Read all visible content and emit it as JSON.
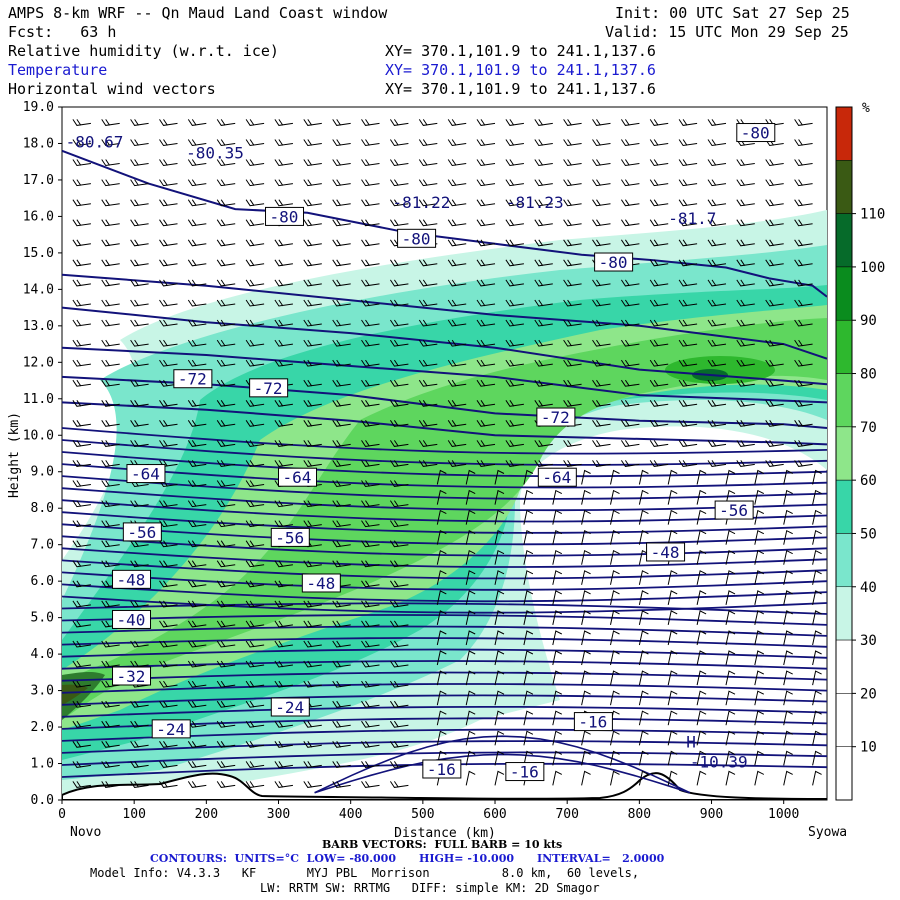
{
  "header": {
    "title": "AMPS 8-km WRF -- Qn Maud Land Coast window",
    "init": "Init: 00 UTC Sat 27 Sep 25",
    "fcst": "Fcst:   63 h",
    "valid": "Valid: 15 UTC Mon 29 Sep 25",
    "fields": [
      {
        "label": "Relative humidity (w.r.t. ice)",
        "xy": "XY= 370.1,101.9 to 241.1,137.6",
        "color": "#000000"
      },
      {
        "label": "Temperature",
        "xy": "XY= 370.1,101.9 to 241.1,137.6",
        "color": "#1a1ad0"
      },
      {
        "label": "Horizontal wind vectors",
        "xy": "XY= 370.1,101.9 to 241.1,137.6",
        "color": "#000000"
      }
    ]
  },
  "chart_data": {
    "type": "heatmap",
    "ylabel": "Height (km)",
    "xlabel": "Distance (km)",
    "xlim": [
      0,
      1060
    ],
    "ylim": [
      0,
      19
    ],
    "x_ticks": [
      "0",
      "100",
      "200",
      "300",
      "400",
      "500",
      "600",
      "700",
      "800",
      "900",
      "1000"
    ],
    "y_ticks": [
      "0.0",
      "1.0",
      "2.0",
      "3.0",
      "4.0",
      "5.0",
      "6.0",
      "7.0",
      "8.0",
      "9.0",
      "10.0",
      "11.0",
      "12.0",
      "13.0",
      "14.0",
      "15.0",
      "16.0",
      "17.0",
      "18.0",
      "19.0"
    ],
    "left_station": "Novo",
    "right_station": "Syowa",
    "colorbar": {
      "unit": "%",
      "levels": [
        "10",
        "20",
        "30",
        "40",
        "50",
        "60",
        "70",
        "80",
        "90",
        "100",
        "110"
      ],
      "colors": [
        "#ffffff",
        "#ffffff",
        "#ffffff",
        "#c8f5e6",
        "#7ae6cc",
        "#38d6a8",
        "#8ee68a",
        "#5ed65e",
        "#2eb82e",
        "#0a8c1e",
        "#066b2a",
        "#3a5a14",
        "#c8280a"
      ]
    },
    "temperature_labels": [
      {
        "text": "-80",
        "x": 935,
        "y": 18.3
      },
      {
        "text": "-80",
        "x": 282,
        "y": 16.0
      },
      {
        "text": "-80",
        "x": 465,
        "y": 15.4
      },
      {
        "text": "-80",
        "x": 738,
        "y": 14.75
      },
      {
        "text": "-72",
        "x": 155,
        "y": 11.55
      },
      {
        "text": "-72",
        "x": 260,
        "y": 11.3
      },
      {
        "text": "-72",
        "x": 658,
        "y": 10.5
      },
      {
        "text": "-64",
        "x": 90,
        "y": 8.95
      },
      {
        "text": "-64",
        "x": 300,
        "y": 8.85
      },
      {
        "text": "-64",
        "x": 660,
        "y": 8.85
      },
      {
        "text": "-56",
        "x": 85,
        "y": 7.35
      },
      {
        "text": "-56",
        "x": 290,
        "y": 7.2
      },
      {
        "text": "-56",
        "x": 905,
        "y": 7.95
      },
      {
        "text": "-48",
        "x": 70,
        "y": 6.05
      },
      {
        "text": "-48",
        "x": 333,
        "y": 5.95
      },
      {
        "text": "-48",
        "x": 810,
        "y": 6.8
      },
      {
        "text": "-40",
        "x": 70,
        "y": 4.95
      },
      {
        "text": "-32",
        "x": 70,
        "y": 3.4
      },
      {
        "text": "-24",
        "x": 125,
        "y": 1.95
      },
      {
        "text": "-24",
        "x": 290,
        "y": 2.55
      },
      {
        "text": "-16",
        "x": 710,
        "y": 2.15
      },
      {
        "text": "-16",
        "x": 500,
        "y": 0.85
      },
      {
        "text": "-16",
        "x": 615,
        "y": 0.78
      }
    ],
    "extrema_labels": [
      {
        "text": "-80.67",
        "x": 5,
        "y": 18.05
      },
      {
        "text": "-80.35",
        "x": 172,
        "y": 17.75
      },
      {
        "text": "-81.22",
        "x": 458,
        "y": 16.4
      },
      {
        "text": "-81.23",
        "x": 615,
        "y": 16.4
      },
      {
        "text": "-81.7",
        "x": 840,
        "y": 15.95
      },
      {
        "text": "H",
        "x": 865,
        "y": 1.6
      },
      {
        "text": "-10.39",
        "x": 870,
        "y": 1.05
      }
    ],
    "isotherms": [
      {
        "value": -80,
        "x": [
          0,
          120,
          240,
          340,
          480,
          600,
          720,
          820,
          920,
          980,
          1040,
          1060
        ],
        "y": [
          17.8,
          16.9,
          16.2,
          16.1,
          15.55,
          15.25,
          14.95,
          14.8,
          14.6,
          14.3,
          14.1,
          13.8
        ]
      },
      {
        "value": -78,
        "x": [
          0,
          200,
          400,
          600,
          800,
          1000,
          1060
        ],
        "y": [
          14.4,
          14.1,
          13.7,
          13.3,
          13.0,
          12.5,
          12.1
        ]
      },
      {
        "value": -76,
        "x": [
          0,
          200,
          400,
          600,
          800,
          1000,
          1060
        ],
        "y": [
          13.5,
          13.1,
          12.8,
          12.4,
          11.8,
          11.5,
          11.4
        ]
      },
      {
        "value": -74,
        "x": [
          0,
          200,
          400,
          600,
          800,
          1000,
          1060
        ],
        "y": [
          12.4,
          12.2,
          11.9,
          11.6,
          11.1,
          10.95,
          10.9
        ]
      },
      {
        "value": -72,
        "x": [
          0,
          200,
          400,
          600,
          800,
          1000,
          1060
        ],
        "y": [
          11.6,
          11.4,
          11.1,
          10.6,
          10.4,
          10.3,
          10.2
        ]
      },
      {
        "value": -70,
        "x": [
          0,
          200,
          400,
          600,
          800,
          1000,
          1060
        ],
        "y": [
          10.9,
          10.7,
          10.4,
          10.0,
          9.9,
          9.8,
          9.75
        ]
      }
    ]
  },
  "footer": {
    "barb": "BARB VECTORS:  FULL BARB = 10 kts",
    "contours": "CONTOURS:  UNITS=°C  LOW= -80.000      HIGH= -10.000      INTERVAL=   2.0000",
    "model1": "Model Info: V4.3.3   KF       MYJ PBL  Morrison          8.0 km,  60 levels,",
    "model2": "LW: RRTM SW: RRTMG   DIFF: simple KM: 2D Smagor"
  }
}
